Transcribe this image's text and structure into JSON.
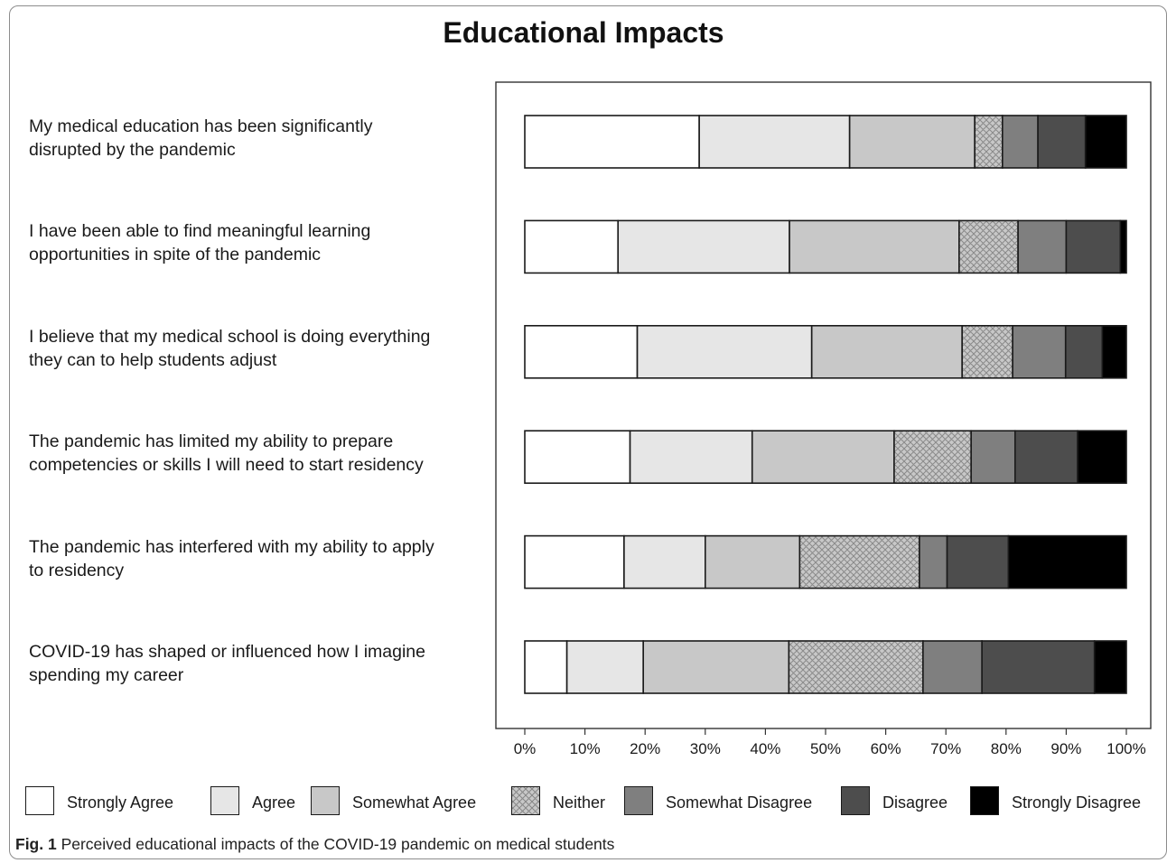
{
  "chart_data": {
    "type": "bar",
    "orientation": "horizontal",
    "stacked": true,
    "title": "Educational Impacts",
    "categories": [
      [
        "My medical education has been significantly",
        "disrupted by the pandemic"
      ],
      [
        "I have been able to find meaningful learning",
        "opportunities in spite of the pandemic"
      ],
      [
        "I believe that my medical school is doing everything",
        "they can to help students adjust"
      ],
      [
        "The pandemic has limited my ability to prepare",
        "competencies or skills I will need to start residency"
      ],
      [
        "The pandemic has interfered with my ability to apply",
        "to residency"
      ],
      [
        "COVID-19 has shaped or influenced how I imagine",
        "spending my career"
      ]
    ],
    "series": [
      {
        "name": "Strongly Agree",
        "color": "#ffffff",
        "values": [
          29.0,
          15.5,
          18.7,
          17.5,
          16.5,
          7.0
        ]
      },
      {
        "name": "Agree",
        "color": "#e6e6e6",
        "values": [
          25.0,
          28.5,
          29.0,
          20.3,
          13.5,
          12.7
        ]
      },
      {
        "name": "Somewhat Agree",
        "color": "#c8c8c8",
        "values": [
          20.8,
          28.2,
          25.0,
          23.6,
          15.7,
          24.2
        ]
      },
      {
        "name": "Neither",
        "color": "#c8c8c8",
        "pattern": "crosshatch",
        "values": [
          4.6,
          9.8,
          8.4,
          12.8,
          19.9,
          22.3
        ]
      },
      {
        "name": "Somewhat Disagree",
        "color": "#7f7f7f",
        "values": [
          5.9,
          8.0,
          8.8,
          7.3,
          4.6,
          9.8
        ]
      },
      {
        "name": "Disagree",
        "color": "#4d4d4d",
        "values": [
          7.9,
          9.0,
          6.1,
          10.4,
          10.2,
          18.7
        ]
      },
      {
        "name": "Strongly Disagree",
        "color": "#000000",
        "values": [
          6.8,
          1.0,
          4.0,
          8.1,
          19.6,
          5.3
        ]
      }
    ],
    "xlim": [
      0,
      100
    ],
    "xticks": [
      "0%",
      "10%",
      "20%",
      "30%",
      "40%",
      "50%",
      "60%",
      "70%",
      "80%",
      "90%",
      "100%"
    ],
    "grid": false,
    "legend_position": "bottom"
  },
  "caption": {
    "label": "Fig. 1",
    "text": "Perceived educational impacts of the COVID-19 pandemic on medical students"
  }
}
